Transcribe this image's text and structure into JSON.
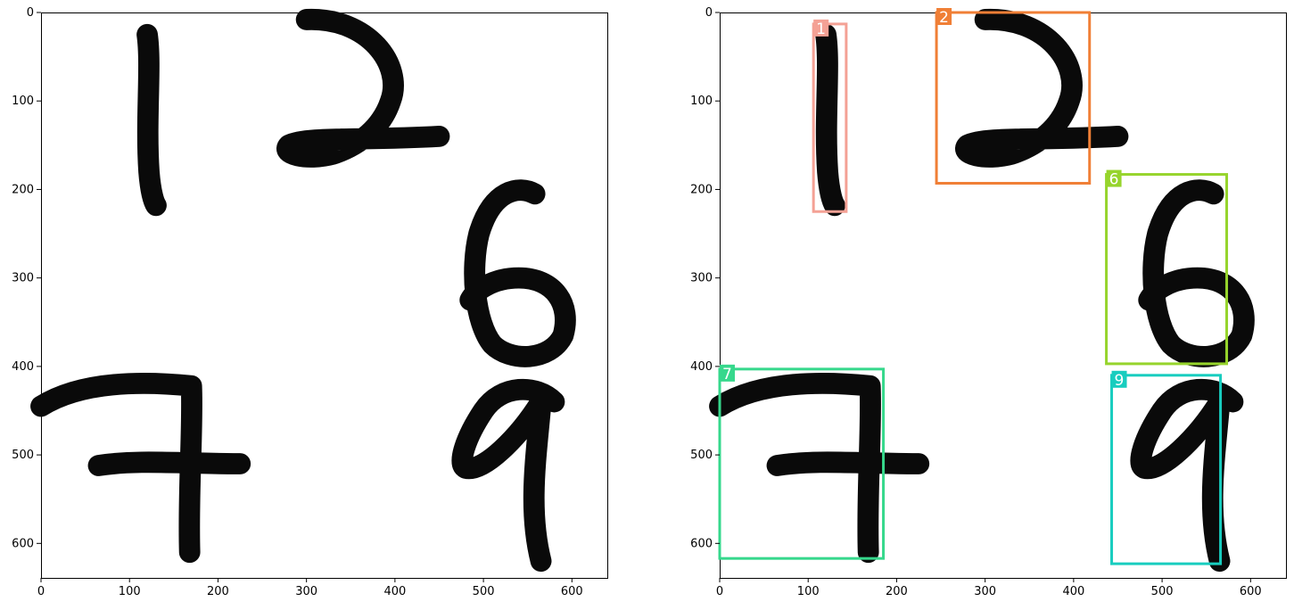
{
  "axes": {
    "x_ticks": [
      "0",
      "100",
      "200",
      "300",
      "400",
      "500",
      "600"
    ],
    "y_ticks": [
      "0",
      "100",
      "200",
      "300",
      "400",
      "500",
      "600"
    ],
    "x_range": [
      0,
      640
    ],
    "y_range": [
      640,
      0
    ]
  },
  "detections": [
    {
      "label": "1",
      "color": "#f4a195",
      "x_min": 106,
      "y_min": 13,
      "x_max": 143,
      "y_max": 225
    },
    {
      "label": "2",
      "color": "#f07f36",
      "x_min": 245,
      "y_min": 0,
      "x_max": 418,
      "y_max": 193
    },
    {
      "label": "6",
      "color": "#96d42c",
      "x_min": 437,
      "y_min": 183,
      "x_max": 573,
      "y_max": 397
    },
    {
      "label": "7",
      "color": "#36d88c",
      "x_min": 0,
      "y_min": 403,
      "x_max": 185,
      "y_max": 617
    },
    {
      "label": "9",
      "color": "#18cdbf",
      "x_min": 443,
      "y_min": 410,
      "x_max": 566,
      "y_max": 623
    }
  ],
  "digits": [
    "1",
    "2",
    "6",
    "7",
    "9"
  ]
}
